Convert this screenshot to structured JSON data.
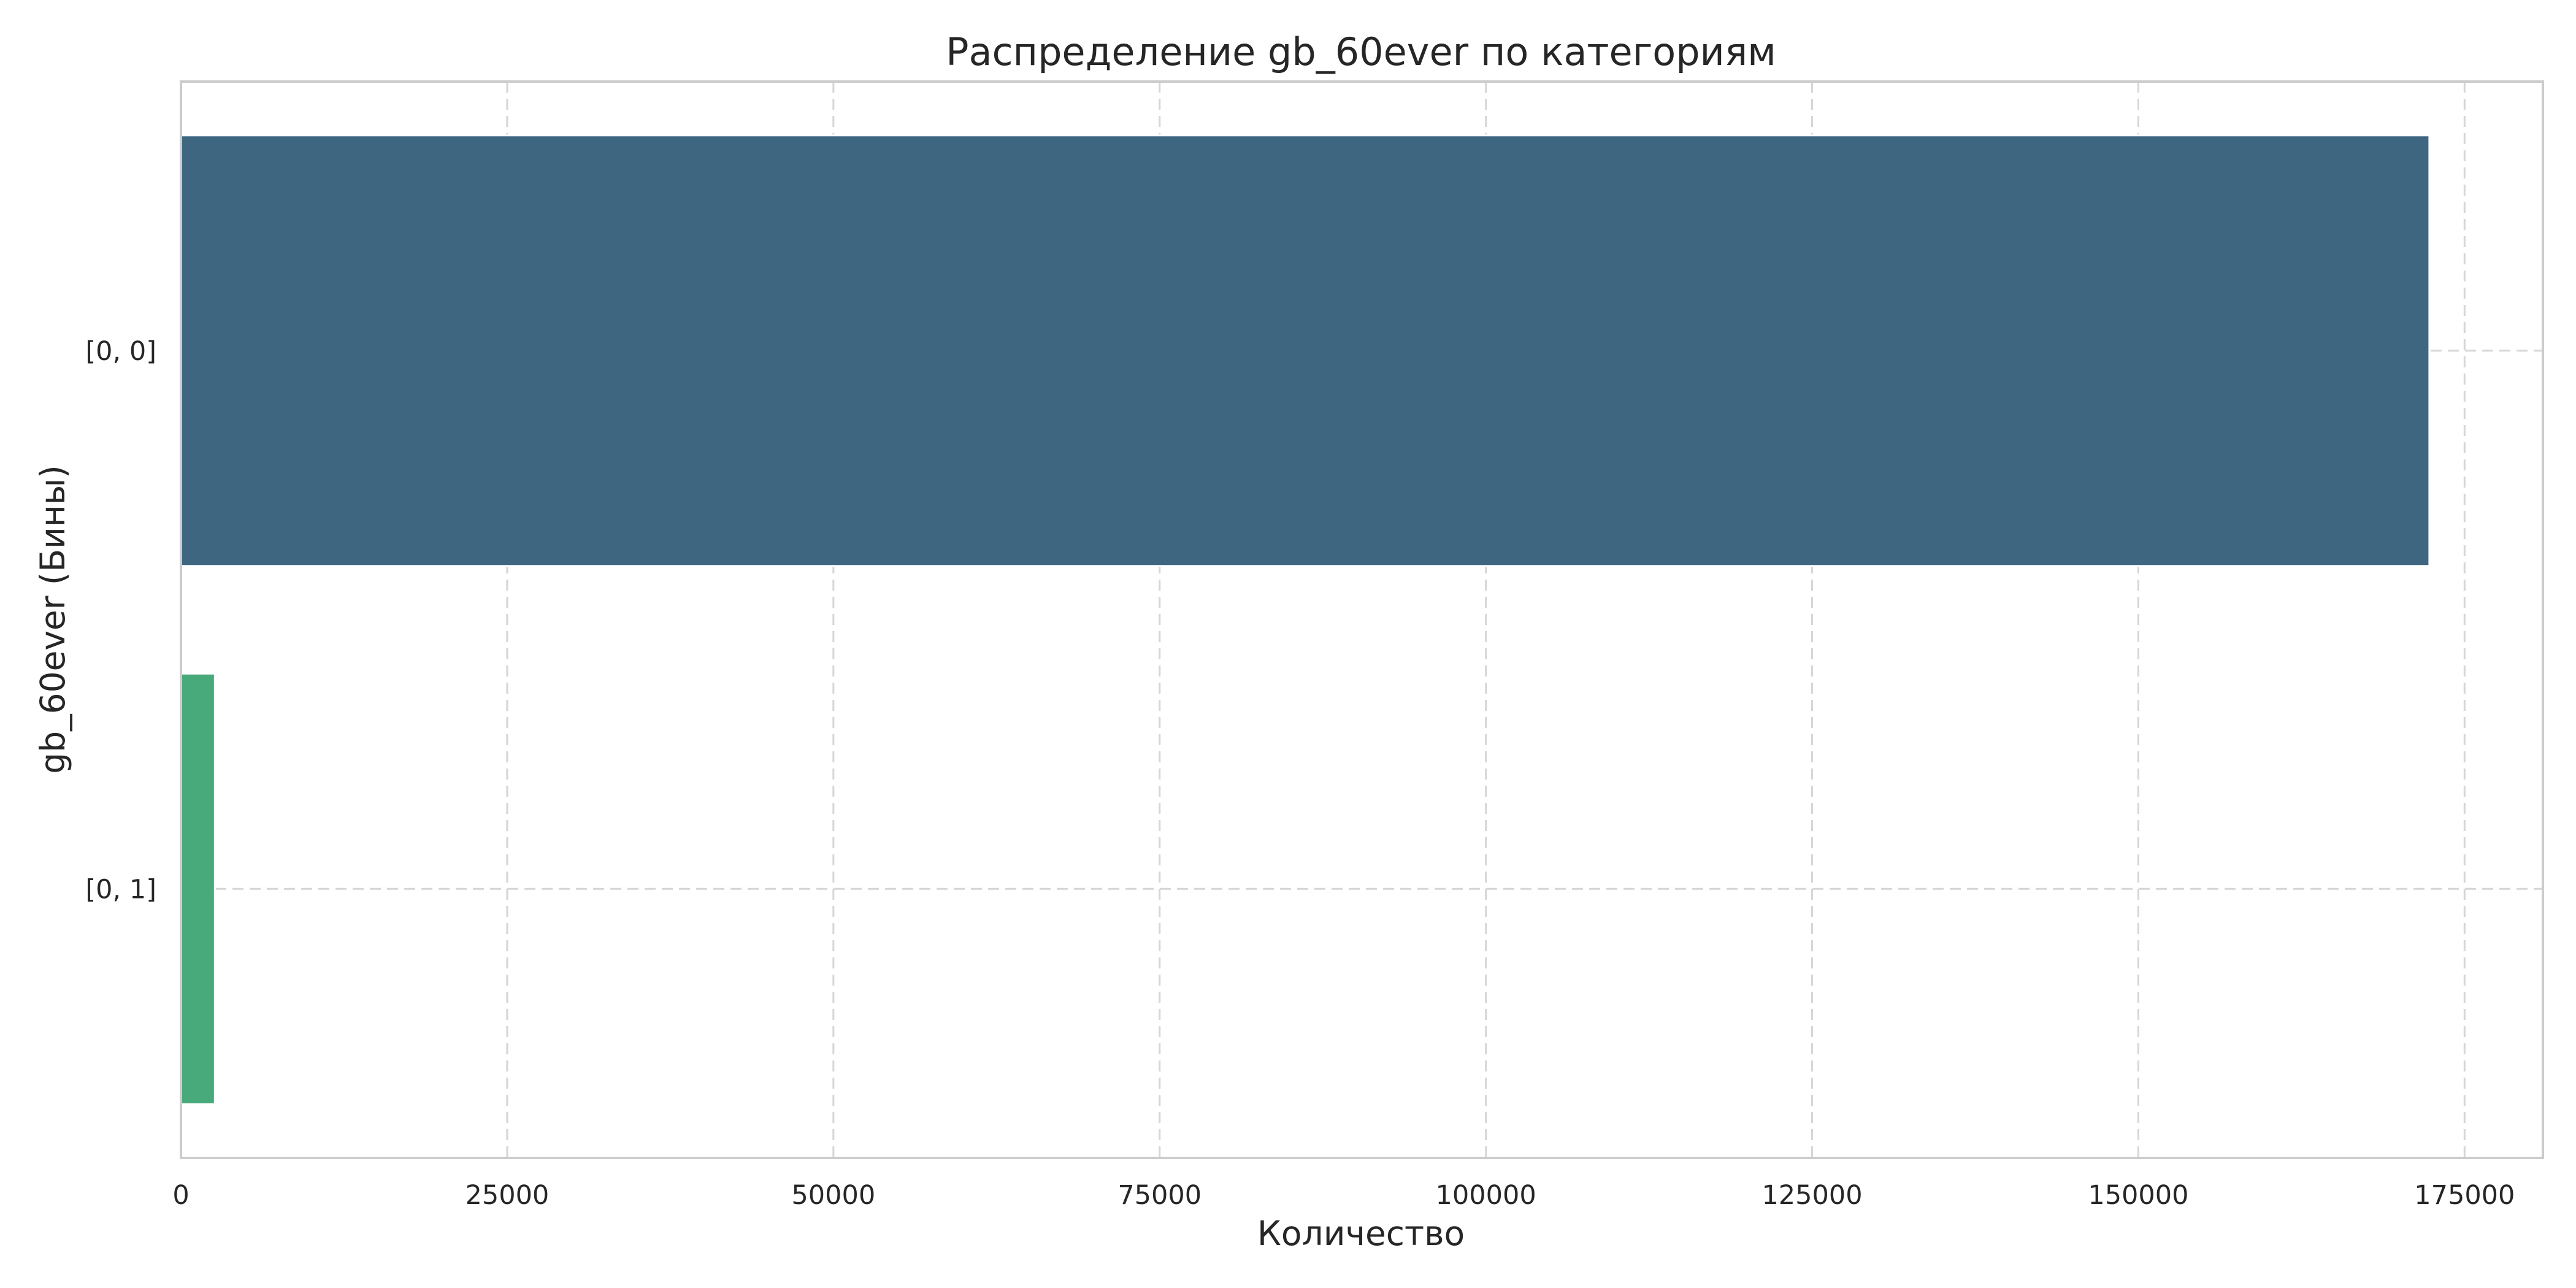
{
  "chart_data": {
    "type": "bar",
    "orientation": "horizontal",
    "title": "Распределение gb_60ever по категориям",
    "xlabel": "Количество",
    "ylabel": "gb_60ever (Бины)",
    "categories": [
      "[0, 0]",
      "[0, 1]"
    ],
    "values": [
      172300,
      2600
    ],
    "colors": [
      "#3e6681",
      "#48a97a"
    ],
    "xlim": [
      0,
      181000
    ],
    "xticks": [
      0,
      25000,
      50000,
      75000,
      100000,
      125000,
      150000,
      175000
    ],
    "xtick_labels": [
      "0",
      "25000",
      "50000",
      "75000",
      "100000",
      "125000",
      "150000",
      "175000"
    ],
    "grid": true,
    "grid_style": "dashed",
    "legend": "none"
  }
}
